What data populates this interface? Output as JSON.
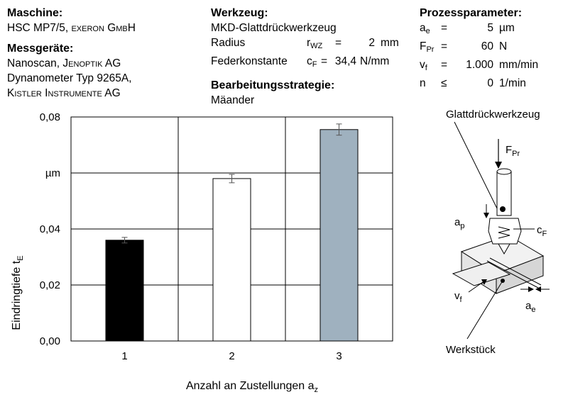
{
  "machine": {
    "heading": "Maschine:",
    "value_prefix": "HSC MP7/5, ",
    "value_brand": "exeron GmbH"
  },
  "measuring": {
    "heading": "Messgeräte:",
    "line1_prefix": "Nanoscan, ",
    "line1_brand": "Jenoptik AG",
    "line2": "Dynanometer Typ 9265A,",
    "line3_brand": "Kistler Instrumente AG"
  },
  "tool": {
    "heading": "Werkzeug:",
    "name": "MKD-Glattdrückwerkzeug",
    "radius_label": "Radius",
    "radius_sym": "r",
    "radius_sub": "WZ",
    "radius_eq": "=",
    "radius_value": "2",
    "radius_unit": "mm",
    "spring_label": "Federkonstante",
    "spring_sym": "c",
    "spring_sub": "F",
    "spring_eq": "=",
    "spring_value": "34,4",
    "spring_unit": "N/mm"
  },
  "strategy": {
    "heading": "Bearbeitungsstrategie:",
    "value": "Mäander"
  },
  "process": {
    "heading": "Prozessparameter:",
    "rows": [
      {
        "sym": "a",
        "sub": "e",
        "op": "=",
        "value": "5",
        "unit": "µm"
      },
      {
        "sym": "F",
        "sub": "Pr",
        "op": "=",
        "value": "60",
        "unit": "N"
      },
      {
        "sym": "v",
        "sub": "f",
        "op": "=",
        "value": "1.000",
        "unit": "mm/min"
      },
      {
        "sym": "n",
        "sub": "",
        "op": "≤",
        "value": "0",
        "unit": "1/min"
      }
    ]
  },
  "chart_data": {
    "type": "bar",
    "categories": [
      "1",
      "2",
      "3"
    ],
    "values": [
      0.036,
      0.058,
      0.0755
    ],
    "errors": [
      0.001,
      0.0015,
      0.002
    ],
    "bar_colors": [
      "#000000",
      "#ffffff",
      "#9fb1bf"
    ],
    "ylim": [
      0,
      0.08
    ],
    "yticks": [
      {
        "value": 0,
        "label": "0,00"
      },
      {
        "value": 0.02,
        "label": "0,02"
      },
      {
        "value": 0.04,
        "label": "0,04"
      },
      {
        "value": 0.06,
        "label": "µm"
      },
      {
        "value": 0.08,
        "label": "0,08"
      }
    ],
    "ylabel": "Eindringtiefe t",
    "ylabel_sub": "E",
    "xlabel": "Anzahl an Zustellungen a",
    "xlabel_sub": "z",
    "grid": true
  },
  "illustration": {
    "tool_label": "Glattdrückwerkzeug",
    "force_label": "F",
    "force_sub": "Pr",
    "ap_label": "a",
    "ap_sub": "p",
    "cf_label": "c",
    "cf_sub": "F",
    "vf_label": "v",
    "vf_sub": "f",
    "ae_label": "a",
    "ae_sub": "e",
    "workpiece_label": "Werkstück"
  }
}
